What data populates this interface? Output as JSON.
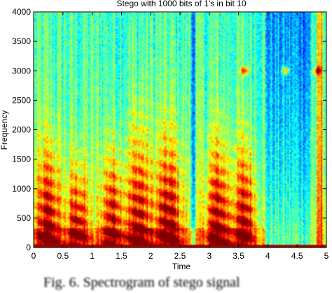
{
  "chart_data": {
    "type": "heatmap",
    "title": "Stego with 1000 bits of 1's in bit 10",
    "xlabel": "Time",
    "ylabel": "Frequency",
    "xlim": [
      0,
      5
    ],
    "ylim": [
      0,
      4000
    ],
    "xticks": [
      "0",
      "0.5",
      "1",
      "1.5",
      "2",
      "2.5",
      "3",
      "3.5",
      "4",
      "4.5",
      "5"
    ],
    "yticks": [
      "0",
      "500",
      "1000",
      "1500",
      "2000",
      "2500",
      "3000",
      "3500",
      "4000"
    ],
    "colormap": "jet",
    "colors": {
      "background": "#1fa5e6",
      "low": "#00008f",
      "high": "#800000"
    },
    "energy_bursts": [
      {
        "time_center": 0.25,
        "time_halfwidth": 0.22,
        "max_frequency": 1600,
        "strength": 0.95
      },
      {
        "time_center": 0.75,
        "time_halfwidth": 0.2,
        "max_frequency": 1300,
        "strength": 0.85
      },
      {
        "time_center": 1.35,
        "time_halfwidth": 0.22,
        "max_frequency": 1500,
        "strength": 0.9
      },
      {
        "time_center": 1.8,
        "time_halfwidth": 0.2,
        "max_frequency": 1900,
        "strength": 0.95
      },
      {
        "time_center": 2.3,
        "time_halfwidth": 0.25,
        "max_frequency": 1800,
        "strength": 0.95
      },
      {
        "time_center": 3.15,
        "time_halfwidth": 0.22,
        "max_frequency": 1700,
        "strength": 0.95
      },
      {
        "time_center": 3.6,
        "time_halfwidth": 0.2,
        "max_frequency": 1600,
        "strength": 0.9
      }
    ],
    "tonal_markers": [
      {
        "time": 3.6,
        "frequency": 3000
      },
      {
        "time": 4.3,
        "frequency": 3000
      },
      {
        "time": 4.85,
        "frequency": 3000
      }
    ]
  },
  "caption": "Fig. 6. Spectrogram of stego signal"
}
